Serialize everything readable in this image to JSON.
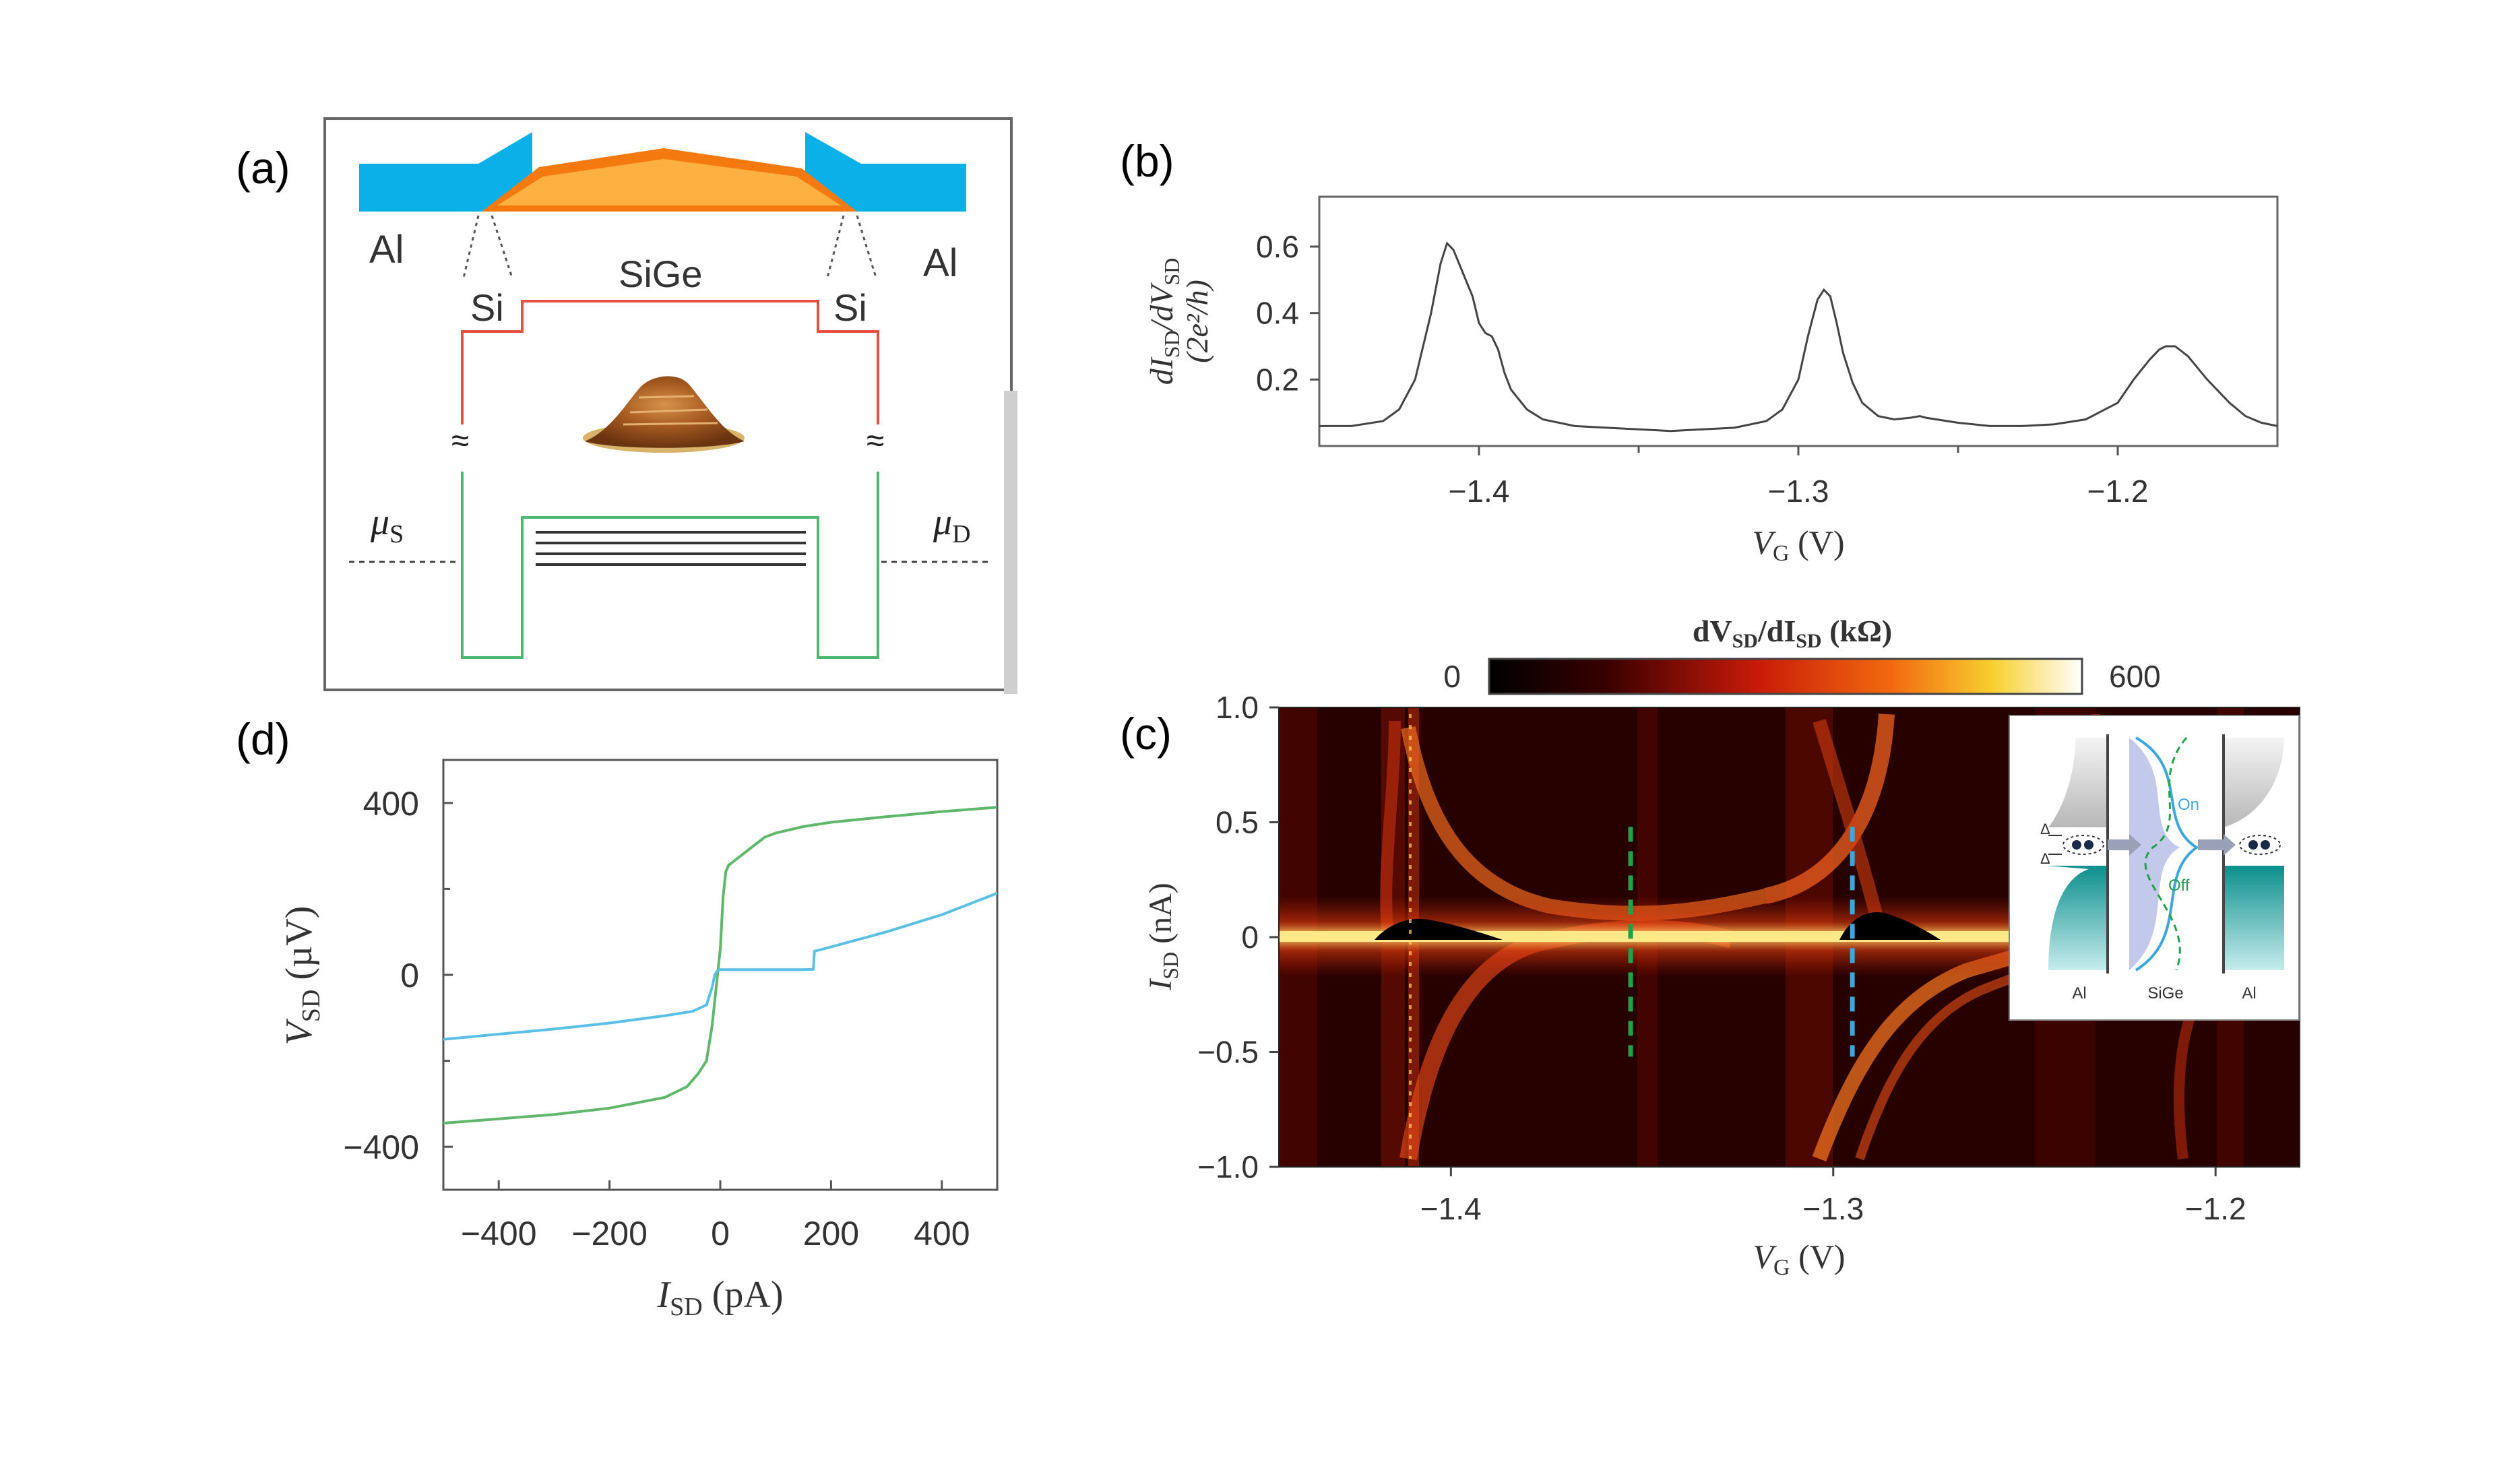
{
  "panels": {
    "a": {
      "label": "(a)",
      "al_left": "Al",
      "al_right": "Al",
      "sige": "SiGe",
      "si_left": "Si",
      "si_right": "Si",
      "mu_s": "μ",
      "mu_s_sub": "S",
      "mu_d": "μ",
      "mu_d_sub": "D",
      "break_mark": "≈"
    },
    "b": {
      "label": "(b)"
    },
    "c": {
      "label": "(c)",
      "colorbar_title": "dV",
      "colorbar_title_sub1": "SD",
      "colorbar_title_mid": "/dI",
      "colorbar_title_sub2": "SD",
      "colorbar_title_unit": " (kΩ)",
      "colorbar_min": "0",
      "colorbar_max": "600",
      "inset": {
        "al_left": "Al",
        "sige": "SiGe",
        "al_right": "Al",
        "on": "On",
        "off": "Off",
        "delta": "Δ"
      }
    },
    "d": {
      "label": "(d)"
    }
  },
  "chart_data": [
    {
      "id": "b",
      "type": "line",
      "ylabel": "dI",
      "ylabel_sub": "SD",
      "ylabel_mid": "/dV",
      "ylabel_sub2": "SD",
      "ylabel_unit": "(2e²/h)",
      "xlabel": "V",
      "xlabel_sub": "G",
      "xlabel_unit": " (V)",
      "xlim": [
        -1.45,
        -1.15
      ],
      "ylim": [
        0,
        0.75
      ],
      "xticks": [
        -1.4,
        -1.3,
        -1.2
      ],
      "xtick_labels": [
        "−1.4",
        "−1.3",
        "−1.2"
      ],
      "yticks": [
        0.2,
        0.4,
        0.6
      ],
      "ytick_labels": [
        "0.2",
        "0.4",
        "0.6"
      ],
      "series": [
        {
          "name": "conductance",
          "color": "#444444",
          "x": [
            -1.45,
            -1.44,
            -1.43,
            -1.425,
            -1.42,
            -1.415,
            -1.412,
            -1.41,
            -1.408,
            -1.405,
            -1.402,
            -1.4,
            -1.398,
            -1.396,
            -1.394,
            -1.392,
            -1.39,
            -1.385,
            -1.38,
            -1.37,
            -1.36,
            -1.35,
            -1.34,
            -1.33,
            -1.32,
            -1.31,
            -1.305,
            -1.3,
            -1.297,
            -1.294,
            -1.292,
            -1.29,
            -1.288,
            -1.286,
            -1.283,
            -1.28,
            -1.275,
            -1.27,
            -1.265,
            -1.262,
            -1.26,
            -1.25,
            -1.24,
            -1.23,
            -1.22,
            -1.21,
            -1.2,
            -1.195,
            -1.19,
            -1.187,
            -1.185,
            -1.182,
            -1.178,
            -1.172,
            -1.165,
            -1.16,
            -1.155,
            -1.15
          ],
          "y": [
            0.06,
            0.06,
            0.075,
            0.11,
            0.2,
            0.4,
            0.55,
            0.61,
            0.59,
            0.52,
            0.45,
            0.37,
            0.34,
            0.33,
            0.29,
            0.22,
            0.17,
            0.11,
            0.08,
            0.06,
            0.055,
            0.05,
            0.045,
            0.05,
            0.055,
            0.075,
            0.11,
            0.2,
            0.33,
            0.44,
            0.47,
            0.45,
            0.37,
            0.28,
            0.19,
            0.13,
            0.09,
            0.08,
            0.085,
            0.09,
            0.085,
            0.07,
            0.06,
            0.06,
            0.065,
            0.08,
            0.13,
            0.2,
            0.26,
            0.29,
            0.3,
            0.3,
            0.27,
            0.2,
            0.13,
            0.09,
            0.07,
            0.06
          ]
        }
      ]
    },
    {
      "id": "c",
      "type": "heatmap",
      "xlabel": "V",
      "xlabel_sub": "G",
      "xlabel_unit": " (V)",
      "ylabel": "I",
      "ylabel_sub": "SD",
      "ylabel_unit": " (nA)",
      "xlim": [
        -1.445,
        -1.178
      ],
      "ylim": [
        -1.0,
        1.0
      ],
      "xticks": [
        -1.4,
        -1.3,
        -1.2
      ],
      "xtick_labels": [
        "−1.4",
        "−1.3",
        "−1.2"
      ],
      "yticks": [
        1.0,
        0.5,
        0,
        -0.5,
        -1.0
      ],
      "ytick_labels": [
        "1.0",
        "0.5",
        "0",
        "−0.5",
        "−1.0"
      ],
      "colorbar_range": [
        0,
        600
      ],
      "markers": [
        {
          "name": "green-dashed-line",
          "x": -1.353,
          "y_range": [
            -0.52,
            0.48
          ],
          "color": "#22a04a"
        },
        {
          "name": "blue-dashed-line",
          "x": -1.295,
          "y_range": [
            -0.52,
            0.48
          ],
          "color": "#3ca7dc"
        }
      ]
    },
    {
      "id": "d",
      "type": "line",
      "xlabel": "I",
      "xlabel_sub": "SD",
      "xlabel_unit": " (pA)",
      "ylabel": "V",
      "ylabel_sub": "SD",
      "ylabel_unit": " (µV)",
      "xlim": [
        -500,
        500
      ],
      "ylim": [
        -500,
        500
      ],
      "xticks": [
        -400,
        -200,
        0,
        200,
        400
      ],
      "xtick_labels": [
        "−400",
        "−200",
        "0",
        "200",
        "400"
      ],
      "yticks": [
        400,
        0,
        -400
      ],
      "ytick_labels": [
        "400",
        "0",
        "−400"
      ],
      "series": [
        {
          "name": "green-trace",
          "color": "#5fb86a",
          "x": [
            -500,
            -400,
            -300,
            -200,
            -100,
            -60,
            -40,
            -25,
            -15,
            -10,
            -5,
            0,
            5,
            10,
            15,
            25,
            40,
            60,
            80,
            100,
            150,
            200,
            300,
            400,
            500
          ],
          "y": [
            -345,
            -335,
            -325,
            -310,
            -285,
            -260,
            -230,
            -200,
            -120,
            -60,
            0,
            60,
            180,
            240,
            255,
            265,
            280,
            300,
            320,
            330,
            345,
            355,
            368,
            380,
            390
          ]
        },
        {
          "name": "blue-trace",
          "color": "#5ac0e6",
          "x": [
            -500,
            -400,
            -300,
            -200,
            -100,
            -50,
            -25,
            -15,
            -10,
            -5,
            0,
            100,
            150,
            168,
            170,
            200,
            300,
            400,
            500
          ],
          "y": [
            -150,
            -138,
            -126,
            -112,
            -95,
            -85,
            -70,
            -30,
            0,
            10,
            12,
            12,
            12,
            13,
            55,
            65,
            100,
            140,
            190
          ]
        }
      ]
    }
  ]
}
